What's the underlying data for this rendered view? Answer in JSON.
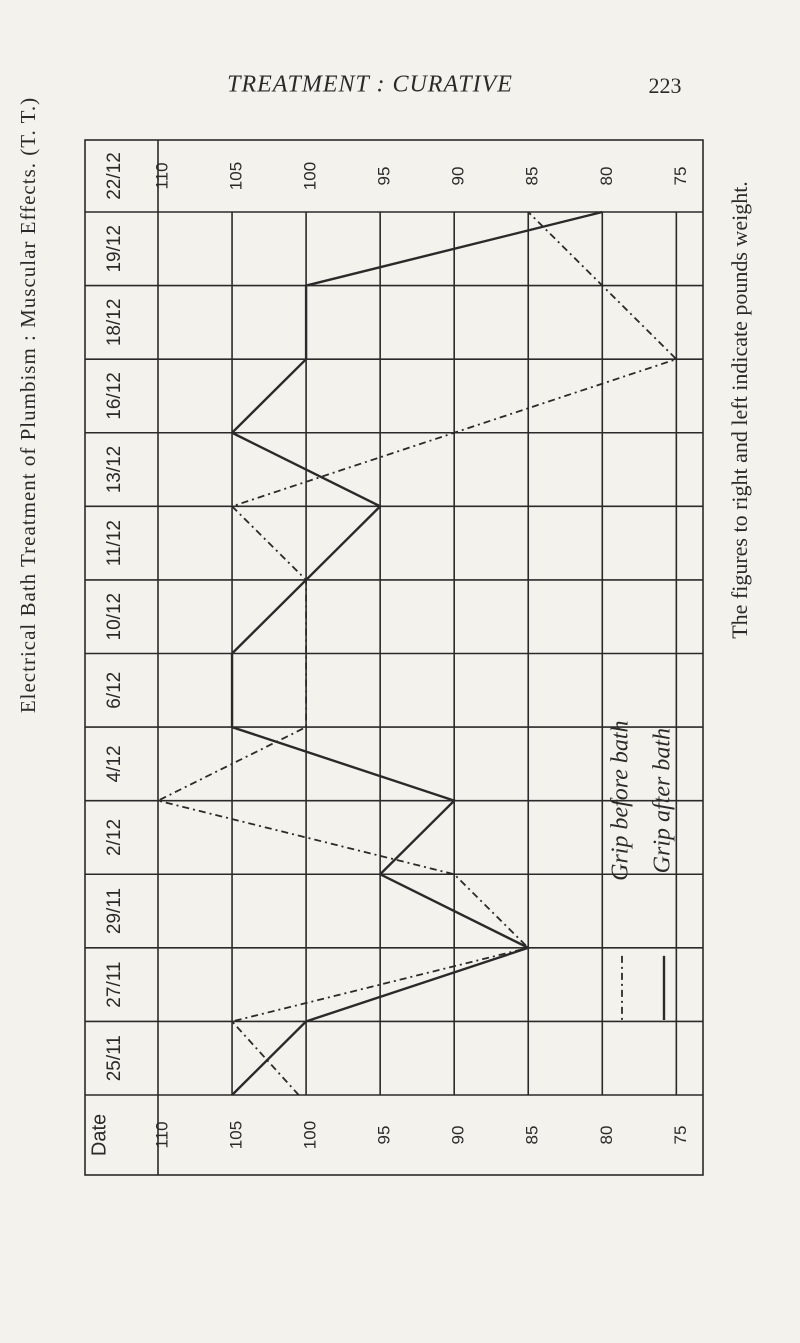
{
  "page_header": {
    "title": "TREATMENT : CURATIVE",
    "page_number": "223",
    "running_head": "Electrical Bath Treatment of Plumbism : Muscular Effects. (T. T.)"
  },
  "caption": "The figures to right and left indicate pounds weight.",
  "chart_data": {
    "type": "line",
    "orientation": "horizontal",
    "category_axis_label": "Date",
    "categories": [
      "25/11",
      "27/11",
      "29/11",
      "2/12",
      "4/12",
      "6/12",
      "10/12",
      "11/12",
      "13/12",
      "16/12",
      "18/12",
      "19/12",
      "22/12"
    ],
    "series": [
      {
        "name": "Grip before bath",
        "color": "#2a2a2a",
        "line_style": "dashed",
        "values": [
          100.5,
          105,
          85,
          90,
          110,
          100,
          100,
          100,
          105,
          90,
          75,
          80,
          85
        ]
      },
      {
        "name": "Grip after bath",
        "color": "#2a2a2a",
        "line_style": "solid",
        "values": [
          105,
          100,
          85,
          95,
          90,
          105,
          105,
          100,
          95,
          105,
          100,
          100,
          80
        ]
      }
    ],
    "xlim": [
      110,
      73.2
    ],
    "xticks": [
      110,
      105,
      100,
      95,
      90,
      85,
      80,
      75
    ],
    "grid": true
  }
}
